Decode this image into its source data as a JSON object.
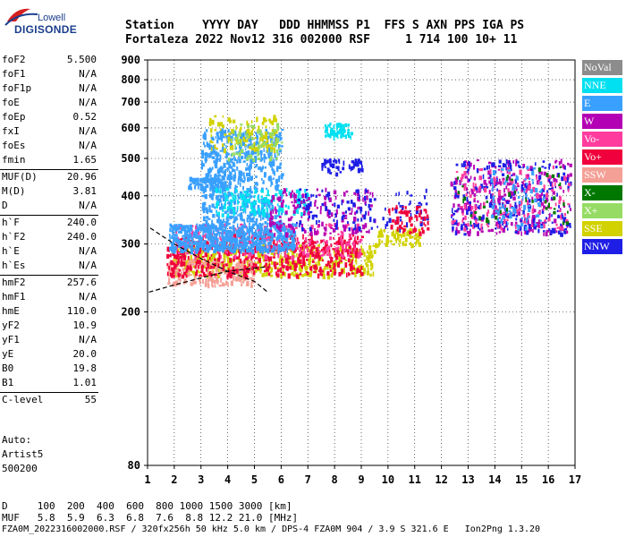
{
  "logo": {
    "line1": "Lowell",
    "line2": "DIGISONDE"
  },
  "header": {
    "line1": "Station    YYYY DAY   DDD HHMMSS P1  FFS S AXN PPS IGA PS",
    "line2": "Fortaleza 2022 Nov12 316 002000 RSF     1 714 100 10+ 11"
  },
  "params": [
    {
      "k": "foF2",
      "v": "5.500"
    },
    {
      "k": "foF1",
      "v": "N/A"
    },
    {
      "k": "foF1p",
      "v": "N/A"
    },
    {
      "k": "foE",
      "v": "N/A"
    },
    {
      "k": "foEp",
      "v": "0.52"
    },
    {
      "k": "fxI",
      "v": "N/A"
    },
    {
      "k": "foEs",
      "v": "N/A"
    },
    {
      "k": "fmin",
      "v": "1.65"
    },
    {
      "k": "MUF(D)",
      "v": "20.96"
    },
    {
      "k": "M(D)",
      "v": "3.81"
    },
    {
      "k": "D",
      "v": "N/A"
    },
    {
      "k": "h`F",
      "v": "240.0"
    },
    {
      "k": "h`F2",
      "v": "240.0"
    },
    {
      "k": "h`E",
      "v": "N/A"
    },
    {
      "k": "h`Es",
      "v": "N/A"
    },
    {
      "k": "hmF2",
      "v": "257.6"
    },
    {
      "k": "hmF1",
      "v": "N/A"
    },
    {
      "k": "hmE",
      "v": "110.0"
    },
    {
      "k": "yF2",
      "v": "10.9"
    },
    {
      "k": "yF1",
      "v": "N/A"
    },
    {
      "k": "yE",
      "v": "20.0"
    },
    {
      "k": "B0",
      "v": "19.8"
    },
    {
      "k": "B1",
      "v": "1.01"
    },
    {
      "k": "C-level",
      "v": "55"
    }
  ],
  "auto": {
    "l1": "Auto:",
    "l2": "Artist5",
    "l3": "500200"
  },
  "legend": [
    {
      "label": "NoVal",
      "color": "#8c8c8c"
    },
    {
      "label": "NNE",
      "color": "#00e0f0"
    },
    {
      "label": "E",
      "color": "#3aa0ff"
    },
    {
      "label": "W",
      "color": "#b400b4"
    },
    {
      "label": "Vo-",
      "color": "#ff3c9e"
    },
    {
      "label": "Vo+",
      "color": "#f0003c"
    },
    {
      "label": "SSW",
      "color": "#f5a096"
    },
    {
      "label": "X-",
      "color": "#007800"
    },
    {
      "label": "X+",
      "color": "#96dc64"
    },
    {
      "label": "SSE",
      "color": "#d2d200"
    },
    {
      "label": "NNW",
      "color": "#1e1ee6"
    }
  ],
  "footer": {
    "line1": "D     100  200  400  600  800 1000 1500 3000 [km]",
    "line2": "MUF   5.8  5.9  6.3  6.8  7.6  8.8 12.2 21.0 [MHz]",
    "line3": "FZA0M_2022316002000.RSF / 320fx256h 50 kHz 5.0 km / DPS-4 FZA0M 904 / 3.9 S 321.6 E   Ion2Png 1.3.20"
  },
  "chart_data": {
    "type": "scatter",
    "xlabel": "",
    "ylabel": "",
    "xlim": [
      1,
      17
    ],
    "ylim": [
      80,
      900
    ],
    "y_scale": "log",
    "x_ticks": [
      1,
      2,
      3,
      4,
      5,
      6,
      7,
      8,
      9,
      10,
      11,
      12,
      13,
      14,
      15,
      16,
      17
    ],
    "y_ticks": [
      80,
      200,
      300,
      400,
      500,
      600,
      700,
      800,
      900
    ],
    "grid": true,
    "clusters": [
      {
        "series": "SSE",
        "fmin": 1.9,
        "fmax": 9.5,
        "hmin": 250,
        "hmax": 300,
        "n": 500
      },
      {
        "series": "SSE",
        "fmin": 9.5,
        "fmax": 11.2,
        "hmin": 300,
        "hmax": 330,
        "n": 80
      },
      {
        "series": "SSW",
        "fmin": 1.7,
        "fmax": 5.0,
        "hmin": 235,
        "hmax": 275,
        "n": 220
      },
      {
        "series": "Vo+",
        "fmin": 1.7,
        "fmax": 9.0,
        "hmin": 250,
        "hmax": 320,
        "n": 550
      },
      {
        "series": "Vo-",
        "fmin": 2.0,
        "fmax": 9.0,
        "hmin": 280,
        "hmax": 340,
        "n": 250
      },
      {
        "series": "E",
        "fmin": 1.8,
        "fmax": 6.5,
        "hmin": 290,
        "hmax": 340,
        "n": 600
      },
      {
        "series": "E",
        "fmin": 3.0,
        "fmax": 6.0,
        "hmin": 340,
        "hmax": 600,
        "n": 650
      },
      {
        "series": "E",
        "fmin": 2.5,
        "fmax": 3.8,
        "hmin": 420,
        "hmax": 450,
        "n": 80
      },
      {
        "series": "NNE",
        "fmin": 7.6,
        "fmax": 8.6,
        "hmin": 570,
        "hmax": 620,
        "n": 60
      },
      {
        "series": "NNE",
        "fmin": 3.5,
        "fmax": 7.0,
        "hmin": 360,
        "hmax": 420,
        "n": 150
      },
      {
        "series": "SSE",
        "fmin": 3.3,
        "fmax": 5.8,
        "hmin": 530,
        "hmax": 650,
        "n": 110
      },
      {
        "series": "X+",
        "fmin": 4.0,
        "fmax": 6.0,
        "hmin": 500,
        "hmax": 620,
        "n": 60
      },
      {
        "series": "W",
        "fmin": 5.5,
        "fmax": 9.5,
        "hmin": 320,
        "hmax": 420,
        "n": 160
      },
      {
        "series": "NNW",
        "fmin": 7.5,
        "fmax": 9.0,
        "hmin": 460,
        "hmax": 500,
        "n": 50
      },
      {
        "series": "NNW",
        "fmin": 6.5,
        "fmax": 11.5,
        "hmin": 330,
        "hmax": 420,
        "n": 120
      },
      {
        "series": "W",
        "fmin": 12.3,
        "fmax": 16.8,
        "hmin": 320,
        "hmax": 500,
        "n": 260
      },
      {
        "series": "NNW",
        "fmin": 12.3,
        "fmax": 16.8,
        "hmin": 320,
        "hmax": 500,
        "n": 220
      },
      {
        "series": "Vo-",
        "fmin": 12.3,
        "fmax": 16.8,
        "hmin": 330,
        "hmax": 480,
        "n": 150
      },
      {
        "series": "E",
        "fmin": 13.8,
        "fmax": 15.8,
        "hmin": 330,
        "hmax": 480,
        "n": 90
      },
      {
        "series": "X-",
        "fmin": 12.5,
        "fmax": 16.8,
        "hmin": 340,
        "hmax": 480,
        "n": 40
      },
      {
        "series": "Vo+",
        "fmin": 10.0,
        "fmax": 11.5,
        "hmin": 320,
        "hmax": 380,
        "n": 60
      }
    ],
    "profile_curves": [
      {
        "points": [
          [
            1.05,
            225
          ],
          [
            2.0,
            235
          ],
          [
            3.0,
            245
          ],
          [
            4.0,
            255
          ],
          [
            5.5,
            262
          ]
        ]
      },
      {
        "points": [
          [
            1.1,
            330
          ],
          [
            2.0,
            300
          ],
          [
            3.0,
            275
          ],
          [
            4.0,
            255
          ],
          [
            5.0,
            240
          ],
          [
            5.5,
            225
          ]
        ]
      }
    ]
  }
}
